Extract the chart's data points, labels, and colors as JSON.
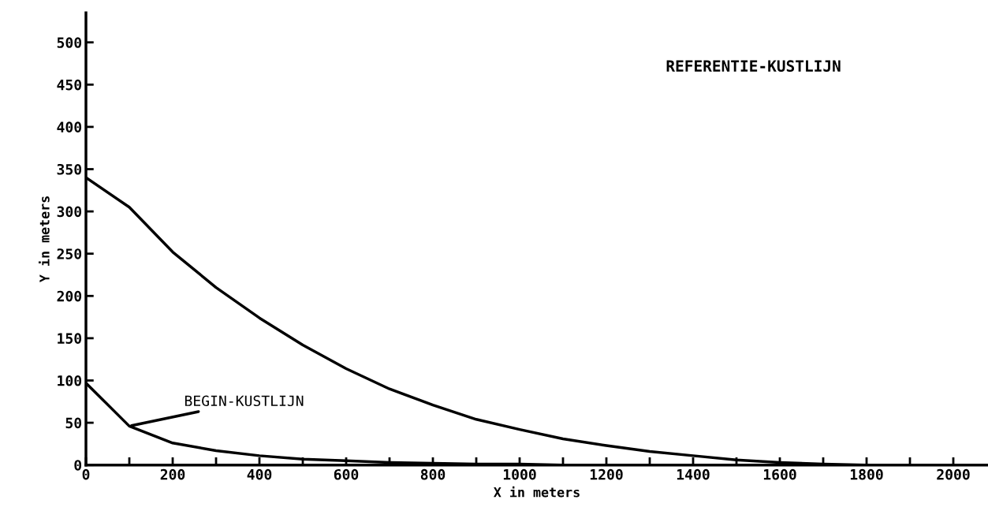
{
  "chart_data": {
    "type": "line",
    "title": "REFERENTIE-KUSTLIJN",
    "xlabel": "X in meters",
    "ylabel": "Y in meters",
    "x": [
      0,
      100,
      200,
      300,
      400,
      500,
      600,
      700,
      800,
      900,
      1000,
      1100,
      1200,
      1300,
      1400,
      1500,
      1600,
      1700,
      1800,
      1900,
      2000
    ],
    "series": [
      {
        "color": "#000000",
        "values": [
          340,
          305,
          252,
          210,
          174,
          142,
          114,
          90,
          71,
          54,
          42,
          31,
          23,
          16,
          11,
          6,
          3,
          1,
          0,
          0,
          0
        ]
      },
      {
        "color": "#000000",
        "values": [
          97,
          46,
          26,
          17,
          11,
          7,
          5,
          3,
          2,
          1,
          1,
          0,
          0,
          0,
          0,
          0,
          0,
          0,
          0,
          0,
          0
        ]
      }
    ],
    "annotations": [
      {
        "text": "BEGIN-KUSTLIJN",
        "x": 100,
        "y": 46
      }
    ],
    "xlim": [
      0,
      2080
    ],
    "ylim": [
      0,
      535
    ],
    "xticks": [
      0,
      {
        "value": 100,
        "label": null
      },
      200,
      {
        "value": 300,
        "label": null
      },
      400,
      {
        "value": 500,
        "label": null
      },
      600,
      {
        "value": 700,
        "label": null
      },
      800,
      {
        "value": 900,
        "label": null
      },
      1000,
      {
        "value": 1100,
        "label": null
      },
      1200,
      {
        "value": 1300,
        "label": null
      },
      1400,
      {
        "value": 1500,
        "label": null
      },
      1600,
      {
        "value": 1700,
        "label": null
      },
      1800,
      {
        "value": 1900,
        "label": null
      },
      2000
    ],
    "yticks": [
      0,
      50,
      100,
      150,
      200,
      250,
      300,
      350,
      400,
      450,
      500
    ],
    "grid": false,
    "legend": false,
    "marker": "none",
    "line_style": "solid"
  }
}
